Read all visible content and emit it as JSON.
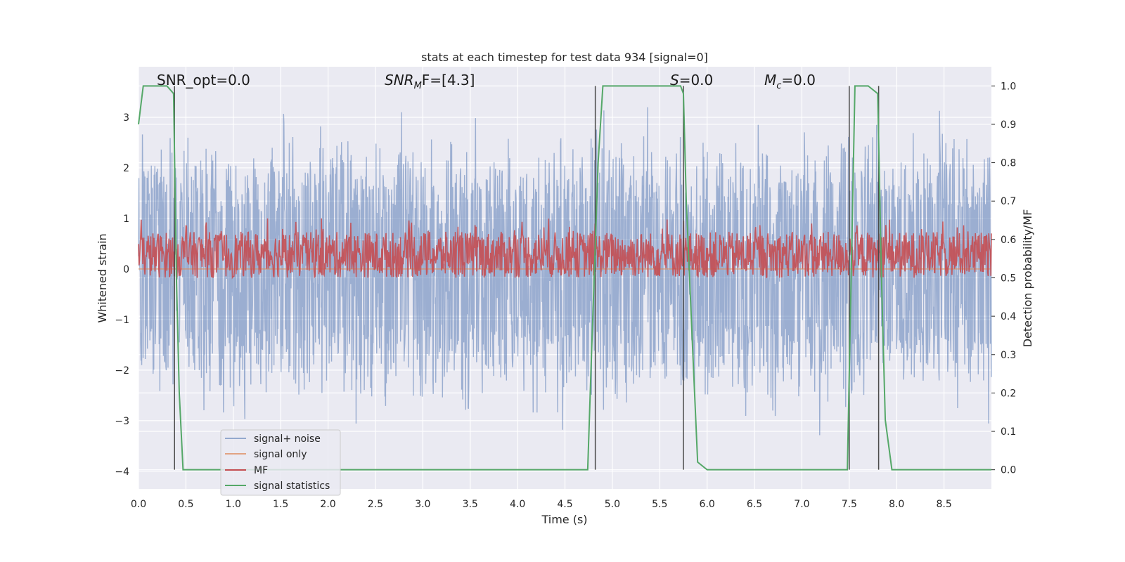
{
  "chart_data": {
    "type": "line",
    "title": "stats at each timestep for test data 934 [signal=0]",
    "xlabel": "Time (s)",
    "ylabel": "Whitened strain",
    "y2label": "Detection probability/MF",
    "xlim": [
      0,
      9.0
    ],
    "ylim": [
      -4.35,
      4.0
    ],
    "y2lim": [
      -0.05,
      1.05
    ],
    "x_ticks": [
      "0.0",
      "0.5",
      "1.0",
      "1.5",
      "2.0",
      "2.5",
      "3.0",
      "3.5",
      "4.0",
      "4.5",
      "5.0",
      "5.5",
      "6.0",
      "6.5",
      "7.0",
      "7.5",
      "8.0",
      "8.5"
    ],
    "y_ticks": [
      "3",
      "2",
      "1",
      "0",
      "−1",
      "−2",
      "−3",
      "−4"
    ],
    "y2_ticks": [
      "1.0",
      "0.9",
      "0.8",
      "0.7",
      "0.6",
      "0.5",
      "0.4",
      "0.3",
      "0.2",
      "0.1",
      "0.0"
    ],
    "grid": true,
    "legend_position": "lower-left",
    "annotations": {
      "snr_opt": "SNR_opt=0.0",
      "snr_mf_main": "SNR",
      "snr_mf_sub": "M",
      "snr_mf_rest": "F=[4.3]",
      "s_main": "S",
      "s_rest": "=0.0",
      "mc_main": "M",
      "mc_sub": "c",
      "mc_rest": "=0.0"
    },
    "series": [
      {
        "name": "signal+ noise",
        "color": "#4c72b0",
        "axis": "left",
        "style": "noise",
        "amplitude_typical": 1.8,
        "mean": 0.0
      },
      {
        "name": "signal only",
        "color": "#dd8452",
        "axis": "left",
        "constant": 0.0
      },
      {
        "name": "MF",
        "color": "#c44e52",
        "axis": "right",
        "style": "noise",
        "min": 0.5,
        "max": 0.62
      },
      {
        "name": "signal statistics",
        "color": "#55a868",
        "axis": "right",
        "x": [
          0.0,
          0.05,
          0.1,
          0.2,
          0.3,
          0.37,
          0.4,
          0.43,
          0.47,
          0.55,
          0.7,
          0.8,
          1.0,
          2.0,
          3.0,
          4.0,
          4.74,
          4.78,
          4.85,
          4.9,
          5.0,
          5.5,
          5.72,
          5.75,
          5.78,
          5.85,
          5.9,
          6.0,
          7.0,
          7.48,
          7.52,
          7.56,
          7.6,
          7.7,
          7.8,
          7.84,
          7.88,
          7.95,
          8.5,
          9.0
        ],
        "y": [
          0.9,
          1.0,
          1.0,
          1.0,
          1.0,
          0.98,
          0.5,
          0.2,
          0.0,
          0.0,
          0.0,
          0.0,
          0.0,
          0.0,
          0.0,
          0.0,
          0.0,
          0.3,
          0.8,
          1.0,
          1.0,
          1.0,
          1.0,
          0.98,
          0.7,
          0.3,
          0.02,
          0.0,
          0.0,
          0.0,
          0.5,
          1.0,
          1.0,
          1.0,
          0.98,
          0.5,
          0.13,
          0.0,
          0.0,
          0.0
        ]
      },
      {
        "name": "",
        "color": "#4a4a4a",
        "axis": "right",
        "type": "vlines",
        "x": [
          0.38,
          4.82,
          5.75,
          7.5,
          7.81
        ],
        "y_range": [
          0.0,
          1.0
        ]
      }
    ]
  }
}
